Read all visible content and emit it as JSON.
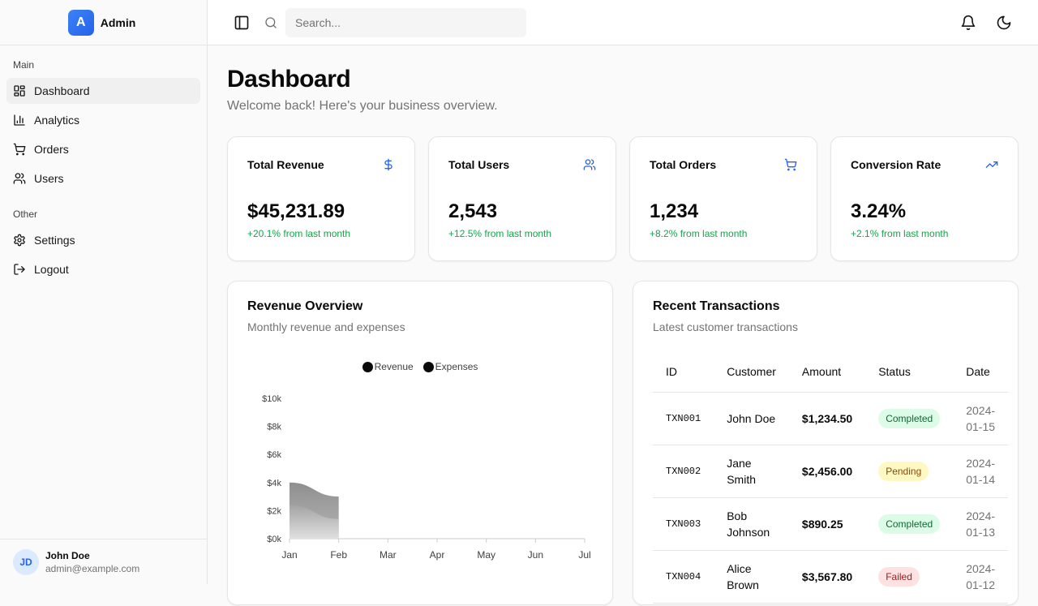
{
  "brand": {
    "logo_letter": "A",
    "name": "Admin",
    "accent": "#3b82f6"
  },
  "sidebar": {
    "groups": [
      {
        "label": "Main",
        "items": [
          {
            "label": "Dashboard",
            "icon": "layout-grid-icon",
            "active": true
          },
          {
            "label": "Analytics",
            "icon": "bar-chart-icon"
          },
          {
            "label": "Orders",
            "icon": "shopping-cart-icon"
          },
          {
            "label": "Users",
            "icon": "users-icon"
          }
        ]
      },
      {
        "label": "Other",
        "items": [
          {
            "label": "Settings",
            "icon": "gear-icon"
          },
          {
            "label": "Logout",
            "icon": "logout-icon"
          }
        ]
      }
    ],
    "user": {
      "initials": "JD",
      "name": "John Doe",
      "email": "admin@example.com"
    }
  },
  "header": {
    "search_placeholder": "Search...",
    "icons": [
      "sidebar-toggle-icon",
      "search-icon",
      "bell-icon",
      "moon-icon"
    ]
  },
  "page": {
    "title": "Dashboard",
    "subtitle": "Welcome back! Here's your business overview."
  },
  "stats": [
    {
      "title": "Total Revenue",
      "value": "$45,231.89",
      "change": "+20.1% from last month",
      "icon": "dollar-icon"
    },
    {
      "title": "Total Users",
      "value": "2,543",
      "change": "+12.5% from last month",
      "icon": "users-icon"
    },
    {
      "title": "Total Orders",
      "value": "1,234",
      "change": "+8.2% from last month",
      "icon": "shopping-cart-icon"
    },
    {
      "title": "Conversion Rate",
      "value": "3.24%",
      "change": "+2.1% from last month",
      "icon": "trending-up-icon"
    }
  ],
  "revenue_panel": {
    "title": "Revenue Overview",
    "subtitle": "Monthly revenue and expenses"
  },
  "chart_data": {
    "type": "area",
    "categories": [
      "Jan",
      "Feb",
      "Mar",
      "Apr",
      "May",
      "Jun",
      "Jul"
    ],
    "series": [
      {
        "name": "Revenue",
        "values": [
          4000,
          3000,
          null,
          null,
          null,
          null,
          null
        ]
      },
      {
        "name": "Expenses",
        "values": [
          2400,
          1400,
          null,
          null,
          null,
          null,
          null
        ]
      }
    ],
    "yticks": [
      "$0k",
      "$2k",
      "$4k",
      "$6k",
      "$8k",
      "$10k"
    ],
    "ylim": [
      0,
      10000
    ],
    "legend": "top-center",
    "grid": false
  },
  "transactions_panel": {
    "title": "Recent Transactions",
    "subtitle": "Latest customer transactions",
    "columns": [
      "ID",
      "Customer",
      "Amount",
      "Status",
      "Date"
    ],
    "rows": [
      {
        "id": "TXN001",
        "customer": "John Doe",
        "amount": "$1,234.50",
        "status": "Completed",
        "date": "2024-01-15"
      },
      {
        "id": "TXN002",
        "customer": "Jane Smith",
        "amount": "$2,456.00",
        "status": "Pending",
        "date": "2024-01-14"
      },
      {
        "id": "TXN003",
        "customer": "Bob Johnson",
        "amount": "$890.25",
        "status": "Completed",
        "date": "2024-01-13"
      },
      {
        "id": "TXN004",
        "customer": "Alice Brown",
        "amount": "$3,567.80",
        "status": "Failed",
        "date": "2024-01-12"
      }
    ],
    "status_colors": {
      "Completed": {
        "bg": "#dcfce7",
        "fg": "#166534"
      },
      "Pending": {
        "bg": "#fef9c3",
        "fg": "#854d0e"
      },
      "Failed": {
        "bg": "#fee2e2",
        "fg": "#991b1b"
      }
    }
  }
}
